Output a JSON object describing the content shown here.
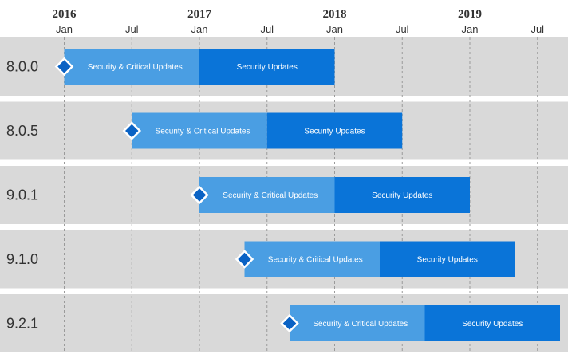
{
  "chart_data": {
    "type": "gantt",
    "x_axis": {
      "years": [
        {
          "label": "2016",
          "date": "2016-01"
        },
        {
          "label": "2017",
          "date": "2017-01"
        },
        {
          "label": "2018",
          "date": "2018-01"
        },
        {
          "label": "2019",
          "date": "2019-01"
        }
      ],
      "months": [
        {
          "label": "Jan",
          "date": "2016-01"
        },
        {
          "label": "Jul",
          "date": "2016-07"
        },
        {
          "label": "Jan",
          "date": "2017-01"
        },
        {
          "label": "Jul",
          "date": "2017-07"
        },
        {
          "label": "Jan",
          "date": "2018-01"
        },
        {
          "label": "Jul",
          "date": "2018-07"
        },
        {
          "label": "Jan",
          "date": "2019-01"
        },
        {
          "label": "Jul",
          "date": "2019-07"
        }
      ],
      "range": [
        "2015-09",
        "2019-12"
      ]
    },
    "rows": [
      {
        "version": "8.0.0",
        "release": "2016-01",
        "critical_end": "2017-01",
        "security_end": "2018-01"
      },
      {
        "version": "8.0.5",
        "release": "2016-07",
        "critical_end": "2017-07",
        "security_end": "2018-07"
      },
      {
        "version": "9.0.1",
        "release": "2017-01",
        "critical_end": "2018-01",
        "security_end": "2019-01"
      },
      {
        "version": "9.1.0",
        "release": "2017-05",
        "critical_end": "2018-05",
        "security_end": "2019-05"
      },
      {
        "version": "9.2.1",
        "release": "2017-09",
        "critical_end": "2018-09",
        "security_end": "2019-09"
      }
    ],
    "phase_labels": {
      "critical": "Security & Critical Updates",
      "security": "Security Updates"
    },
    "colors": {
      "row_background": "#d9d9d9",
      "critical_bar": "#4a9ee3",
      "security_bar": "#0a74d8",
      "marker": "#0a62c4",
      "gridline": "#9a9a9a"
    },
    "grid": true
  }
}
